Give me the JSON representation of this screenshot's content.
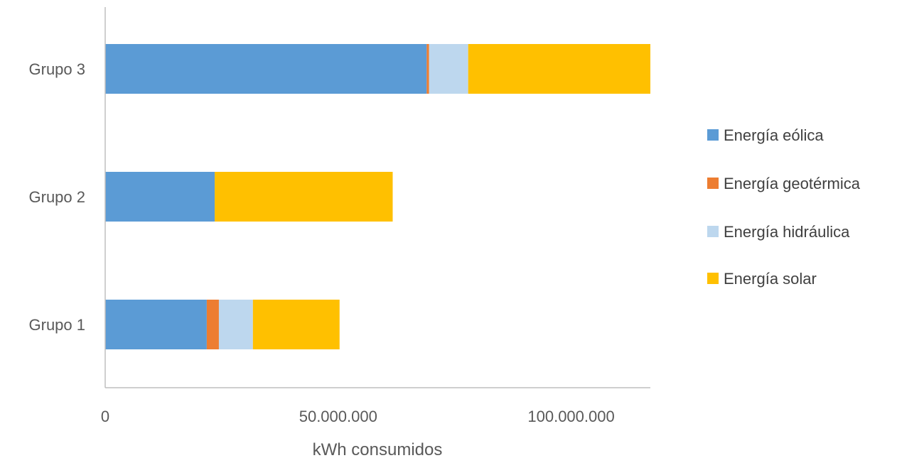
{
  "chart_data": {
    "type": "bar",
    "orientation": "horizontal",
    "stacked": true,
    "title": "",
    "xlabel": "kWh consumidos",
    "ylabel": "",
    "xlim": [
      0,
      117000000
    ],
    "x_ticks": [
      {
        "value": 0,
        "label": "0"
      },
      {
        "value": 50000000,
        "label": "50.000.000"
      },
      {
        "value": 100000000,
        "label": "100.000.000"
      }
    ],
    "categories": [
      "Grupo 1",
      "Grupo 2",
      "Grupo 3"
    ],
    "series": [
      {
        "name": "Energía eólica",
        "color": "#5B9BD5",
        "values": [
          21800000,
          23500000,
          69000000
        ]
      },
      {
        "name": "Energía geotérmica",
        "color": "#ED7D31",
        "values": [
          2600000,
          0,
          500000
        ]
      },
      {
        "name": "Energía hidráulica",
        "color": "#BDD7EE",
        "values": [
          7300000,
          0,
          8400000
        ]
      },
      {
        "name": "Energía solar",
        "color": "#FFC000",
        "values": [
          18600000,
          38200000,
          39100000
        ]
      }
    ],
    "grid": false,
    "legend_position": "right"
  }
}
